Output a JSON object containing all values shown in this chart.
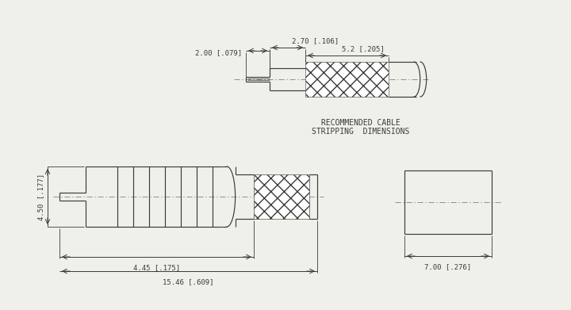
{
  "bg_color": "#f0f0eb",
  "line_color": "#3a3a3a",
  "dim_color": "#3a3a3a",
  "dimensions": {
    "main_length": "15.46 [.609]",
    "rear_length": "4.45 [.175]",
    "height": "4.50 [.177]",
    "side_width": "7.00 [.276]",
    "cable_outer": "5.2 [.205]",
    "cable_inner": "2.70 [.106]",
    "cable_pin": "2.00 [.079]"
  },
  "rec_cable_text": [
    "RECOMMENDED CABLE",
    "STRIPPING  DIMENSIONS"
  ]
}
